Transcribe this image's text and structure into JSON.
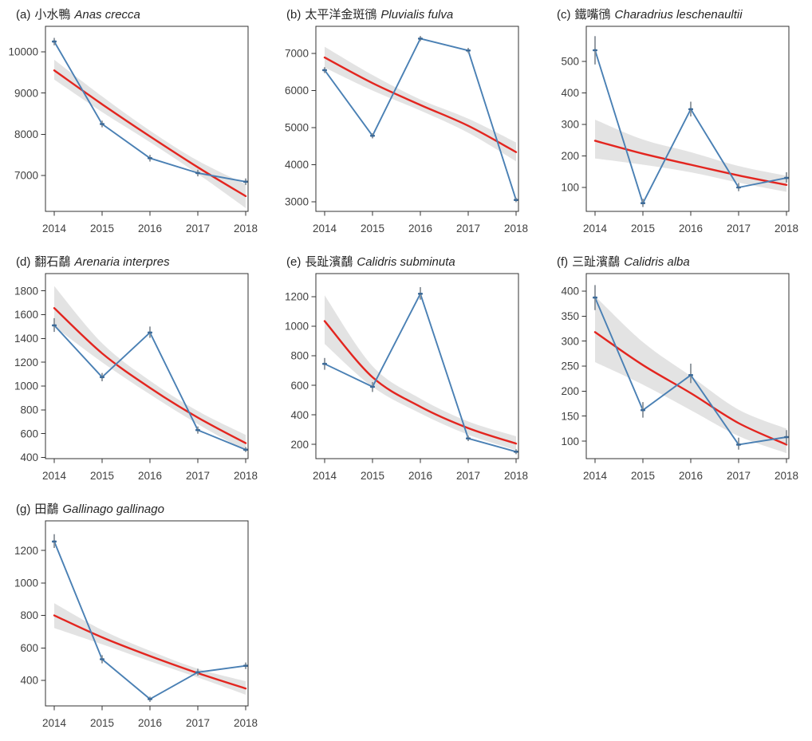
{
  "colors": {
    "observed_line": "#4a80b4",
    "point_marker": "#3d6b99",
    "error_bar": "#8a9299",
    "trend_line": "#e3251f",
    "ci_band": "#000000",
    "ci_band_opacity": 0.11,
    "axis_line": "#333333",
    "axis_text": "#404040",
    "background": "#ffffff"
  },
  "x_tick_labels": [
    "2014",
    "2015",
    "2016",
    "2017",
    "2018"
  ],
  "chart_data": [
    {
      "type": "line",
      "panel_label": "(a)",
      "title_zh": "小水鴨",
      "title_latin": "Anas crecca",
      "x": [
        2014,
        2015,
        2016,
        2017,
        2018
      ],
      "observed": [
        10250,
        8250,
        7420,
        7060,
        6850
      ],
      "err_low": [
        10160,
        8170,
        7340,
        6980,
        6770
      ],
      "err_high": [
        10340,
        8330,
        7500,
        7140,
        6930
      ],
      "trend": [
        9550,
        8730,
        7950,
        7200,
        6500
      ],
      "ci_low": [
        9330,
        8540,
        7810,
        7040,
        6210
      ],
      "ci_high": [
        9810,
        8920,
        8090,
        7360,
        6790
      ],
      "yticks": [
        7000,
        8000,
        9000,
        10000
      ],
      "ylim": [
        6130,
        10620
      ]
    },
    {
      "type": "line",
      "panel_label": "(b)",
      "title_zh": "太平洋金斑鴴",
      "title_latin": "Pluvialis fulva",
      "x": [
        2014,
        2015,
        2016,
        2017,
        2018
      ],
      "observed": [
        6550,
        4780,
        7400,
        7080,
        3050
      ],
      "err_low": [
        6470,
        4710,
        7330,
        7010,
        2990
      ],
      "err_high": [
        6630,
        4850,
        7470,
        7150,
        3110
      ],
      "trend": [
        6890,
        6200,
        5610,
        5050,
        4340
      ],
      "ci_low": [
        6620,
        6000,
        5460,
        4860,
        4090
      ],
      "ci_high": [
        7180,
        6420,
        5760,
        5240,
        4600
      ],
      "yticks": [
        3000,
        4000,
        5000,
        6000,
        7000
      ],
      "ylim": [
        2742,
        7731
      ]
    },
    {
      "type": "line",
      "panel_label": "(c)",
      "title_zh": "鐵嘴鴴",
      "title_latin": "Charadrius leschenaultii",
      "x": [
        2014,
        2015,
        2016,
        2017,
        2018
      ],
      "observed": [
        535,
        50,
        348,
        100,
        130
      ],
      "err_low": [
        490,
        38,
        325,
        88,
        115
      ],
      "err_high": [
        580,
        64,
        372,
        114,
        148
      ],
      "trend": [
        248,
        207,
        172,
        138,
        108
      ],
      "ci_low": [
        192,
        172,
        148,
        115,
        86
      ],
      "ci_high": [
        315,
        252,
        212,
        168,
        137
      ],
      "yticks": [
        100,
        200,
        300,
        400,
        500
      ],
      "ylim": [
        24,
        611
      ]
    },
    {
      "type": "line",
      "panel_label": "(d)",
      "title_zh": "翻石鷸",
      "title_latin": "Arenaria interpres",
      "x": [
        2014,
        2015,
        2016,
        2017,
        2018
      ],
      "observed": [
        1510,
        1075,
        1450,
        630,
        465
      ],
      "err_low": [
        1455,
        1040,
        1405,
        600,
        445
      ],
      "err_high": [
        1570,
        1110,
        1500,
        660,
        487
      ],
      "trend": [
        1655,
        1275,
        985,
        735,
        520
      ],
      "ci_low": [
        1500,
        1200,
        930,
        680,
        455
      ],
      "ci_high": [
        1840,
        1360,
        1045,
        790,
        590
      ],
      "yticks": [
        400,
        600,
        800,
        1000,
        1200,
        1400,
        1600,
        1800
      ],
      "ylim": [
        390,
        1945
      ]
    },
    {
      "type": "line",
      "panel_label": "(e)",
      "title_zh": "長趾濱鷸",
      "title_latin": "Calidris subminuta",
      "x": [
        2014,
        2015,
        2016,
        2017,
        2018
      ],
      "observed": [
        745,
        590,
        1220,
        240,
        150
      ],
      "err_low": [
        705,
        555,
        1180,
        222,
        133
      ],
      "err_high": [
        785,
        622,
        1265,
        260,
        167
      ],
      "trend": [
        1035,
        655,
        455,
        310,
        205
      ],
      "ci_low": [
        880,
        590,
        410,
        265,
        160
      ],
      "ci_high": [
        1210,
        730,
        510,
        355,
        255
      ],
      "yticks": [
        200,
        400,
        600,
        800,
        1000,
        1200
      ],
      "ylim": [
        103,
        1357
      ]
    },
    {
      "type": "line",
      "panel_label": "(f)",
      "title_zh": "三趾濱鷸",
      "title_latin": "Calidris alba",
      "x": [
        2014,
        2015,
        2016,
        2017,
        2018
      ],
      "observed": [
        387,
        162,
        232,
        93,
        108
      ],
      "err_low": [
        362,
        147,
        216,
        83,
        94
      ],
      "err_high": [
        412,
        178,
        255,
        107,
        122
      ],
      "trend": [
        318,
        252,
        196,
        136,
        93
      ],
      "ci_low": [
        258,
        213,
        162,
        110,
        76
      ],
      "ci_high": [
        390,
        298,
        230,
        163,
        125
      ],
      "yticks": [
        100,
        150,
        200,
        250,
        300,
        350,
        400
      ],
      "ylim": [
        65,
        435
      ]
    },
    {
      "type": "line",
      "panel_label": "(g)",
      "title_zh": "田鷸",
      "title_latin": "Gallinago gallinago",
      "x": [
        2014,
        2015,
        2016,
        2017,
        2018
      ],
      "observed": [
        1255,
        530,
        285,
        450,
        490
      ],
      "err_low": [
        1215,
        505,
        268,
        430,
        470
      ],
      "err_high": [
        1300,
        555,
        300,
        472,
        510
      ],
      "trend": [
        800,
        665,
        550,
        445,
        350
      ],
      "ci_low": [
        722,
        622,
        518,
        418,
        312
      ],
      "ci_high": [
        875,
        710,
        582,
        472,
        395
      ],
      "yticks": [
        400,
        600,
        800,
        1000,
        1200
      ],
      "ylim": [
        243,
        1382
      ]
    }
  ]
}
